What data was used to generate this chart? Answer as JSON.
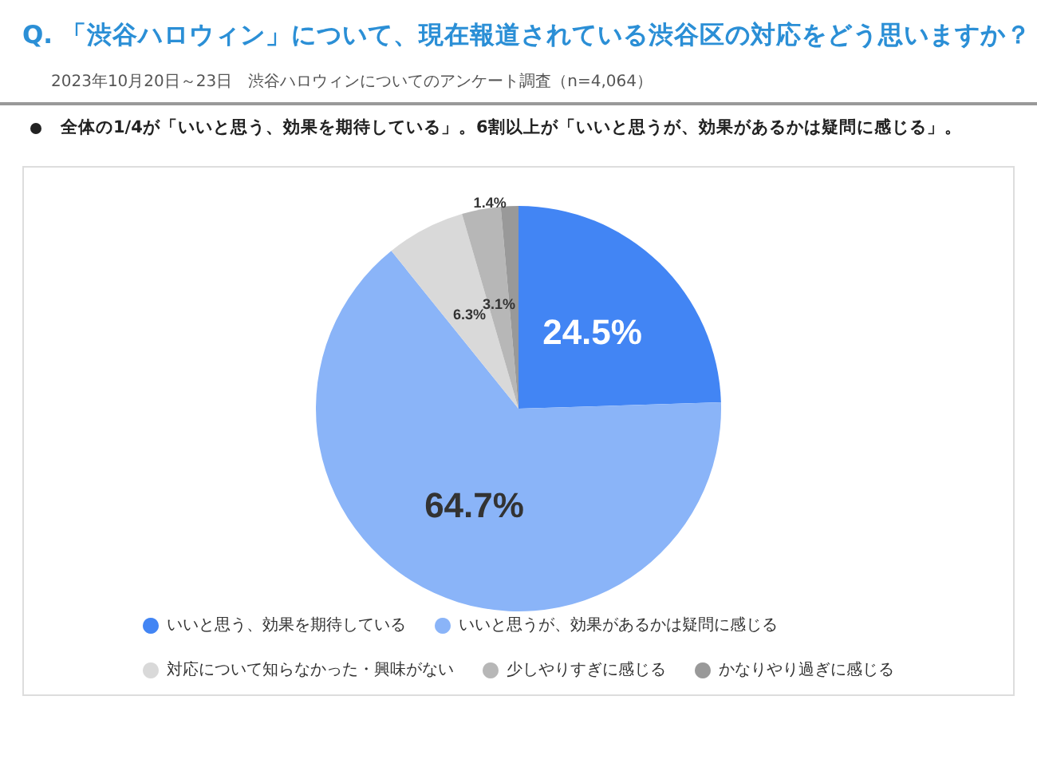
{
  "chart_data": {
    "type": "pie",
    "title": "Q. 「渋谷ハロウィン」について、現在報道されている渋谷区の対応をどう思いますか？",
    "subtitle": "2023年10月20日～23日　渋谷ハロウィンについてのアンケート調査（n=4,064）",
    "annotations": [
      "全体の1/4が「いいと思う、効果を期待している」。6割以上が「いいと思うが、効果があるかは疑問に感じる」。"
    ],
    "categories": [
      "いいと思う、効果を期待している",
      "いいと思うが、効果があるかは疑問に感じる",
      "対応について知らなかった・興味がない",
      "少しやりすぎに感じる",
      "かなりやり過ぎに感じる"
    ],
    "values": [
      24.5,
      64.7,
      6.3,
      3.1,
      1.4
    ],
    "colors": [
      "#4285f4",
      "#8ab4f8",
      "#d9d9d9",
      "#b7b7b7",
      "#999999"
    ],
    "value_labels": [
      "24.5%",
      "64.7%",
      "6.3%",
      "3.1%",
      "1.4%"
    ],
    "legend": "bottom"
  }
}
